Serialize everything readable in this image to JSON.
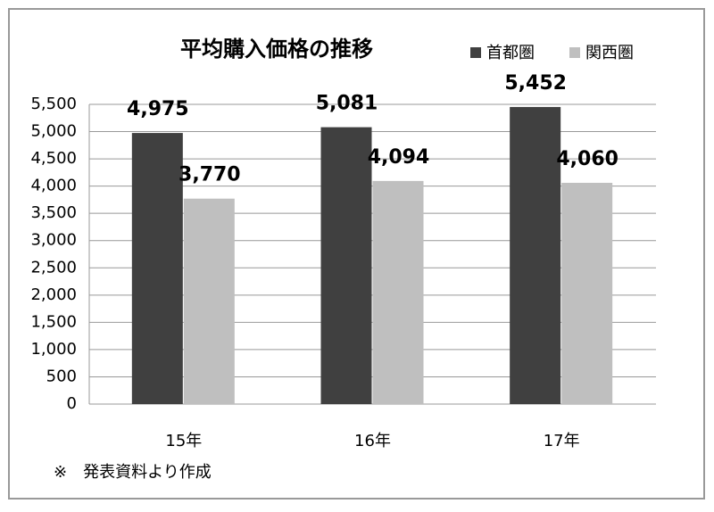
{
  "chart_data": {
    "type": "bar",
    "title": "平均購入価格の推移",
    "categories": [
      "15年",
      "16年",
      "17年"
    ],
    "series": [
      {
        "name": "首都圏",
        "color": "#404040",
        "values": [
          4975,
          5081,
          5452
        ],
        "value_labels": [
          "4,975",
          "5,081",
          "5,452"
        ]
      },
      {
        "name": "関西圏",
        "color": "#bfbfbf",
        "values": [
          3770,
          4094,
          4060
        ],
        "value_labels": [
          "3,770",
          "4,094",
          "4,060"
        ]
      }
    ],
    "ylim": [
      0,
      5500
    ],
    "yticks": [
      0,
      500,
      {
        "value": 1000,
        "label": "1,000"
      },
      {
        "value": 1500,
        "label": "1,500"
      },
      {
        "value": 2000,
        "label": "2,000"
      },
      {
        "value": 2500,
        "label": "2,500"
      },
      {
        "value": 3000,
        "label": "3,000"
      },
      {
        "value": 3500,
        "label": "3,500"
      },
      {
        "value": 4000,
        "label": "4,000"
      },
      {
        "value": 4500,
        "label": "4,500"
      },
      {
        "value": 5000,
        "label": "5,000"
      },
      {
        "value": 5500,
        "label": "5,500"
      }
    ],
    "grid": true,
    "legend": "top-right",
    "note": "※　発表資料より作成"
  }
}
